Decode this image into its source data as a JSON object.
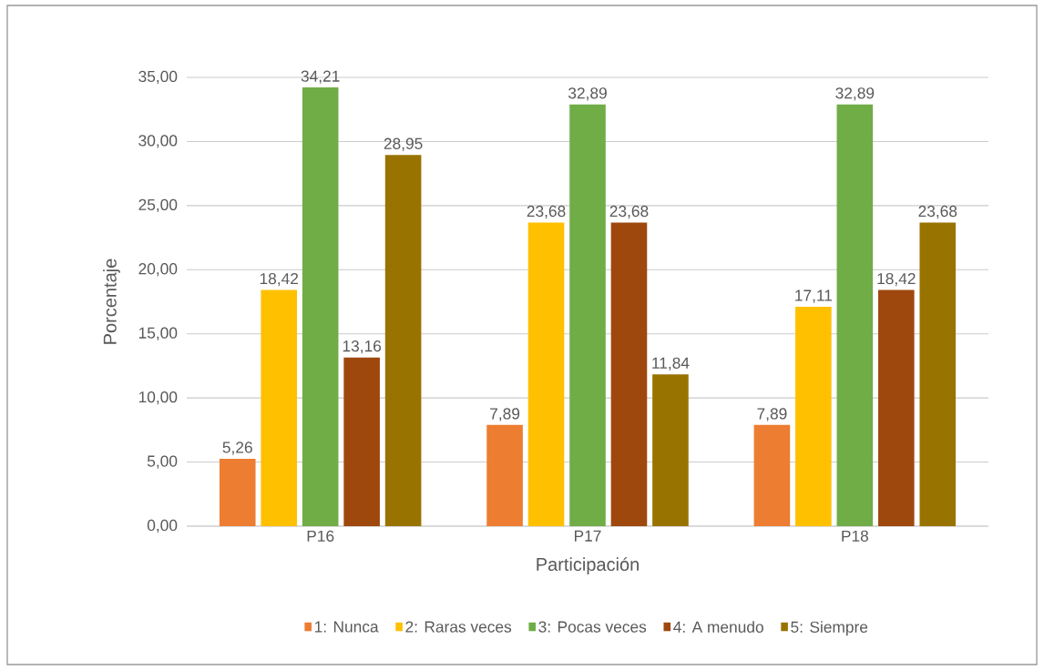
{
  "chart_data": {
    "type": "bar",
    "xlabel": "Participación",
    "ylabel": "Porcentaje",
    "categories": [
      "P16",
      "P17",
      "P18"
    ],
    "series": [
      {
        "name": "1: Nunca",
        "color": "#ed7d31",
        "values": [
          5.26,
          7.89,
          7.89
        ],
        "value_labels": [
          "5,26",
          "7,89",
          "7,89"
        ]
      },
      {
        "name": "2: Raras veces",
        "color": "#ffc000",
        "values": [
          18.42,
          23.68,
          17.11
        ],
        "value_labels": [
          "18,42",
          "23,68",
          "17,11"
        ]
      },
      {
        "name": "3: Pocas veces",
        "color": "#70ad47",
        "values": [
          34.21,
          32.89,
          32.89
        ],
        "value_labels": [
          "34,21",
          "32,89",
          "32,89"
        ]
      },
      {
        "name": "4: A menudo",
        "color": "#9e480e",
        "values": [
          13.16,
          23.68,
          18.42
        ],
        "value_labels": [
          "13,16",
          "23,68",
          "18,42"
        ]
      },
      {
        "name": "5: Siempre",
        "color": "#997300",
        "values": [
          28.95,
          11.84,
          23.68
        ],
        "value_labels": [
          "28,95",
          "11,84",
          "23,68"
        ]
      }
    ],
    "ylim": [
      0,
      35
    ],
    "yticks": [
      {
        "value": 0,
        "label": "0,00"
      },
      {
        "value": 5,
        "label": "5,00"
      },
      {
        "value": 10,
        "label": "10,00"
      },
      {
        "value": 15,
        "label": "15,00"
      },
      {
        "value": 20,
        "label": "20,00"
      },
      {
        "value": 25,
        "label": "25,00"
      },
      {
        "value": 30,
        "label": "30,00"
      },
      {
        "value": 35,
        "label": "35,00"
      }
    ],
    "grid": "y",
    "legend": "bottom"
  }
}
